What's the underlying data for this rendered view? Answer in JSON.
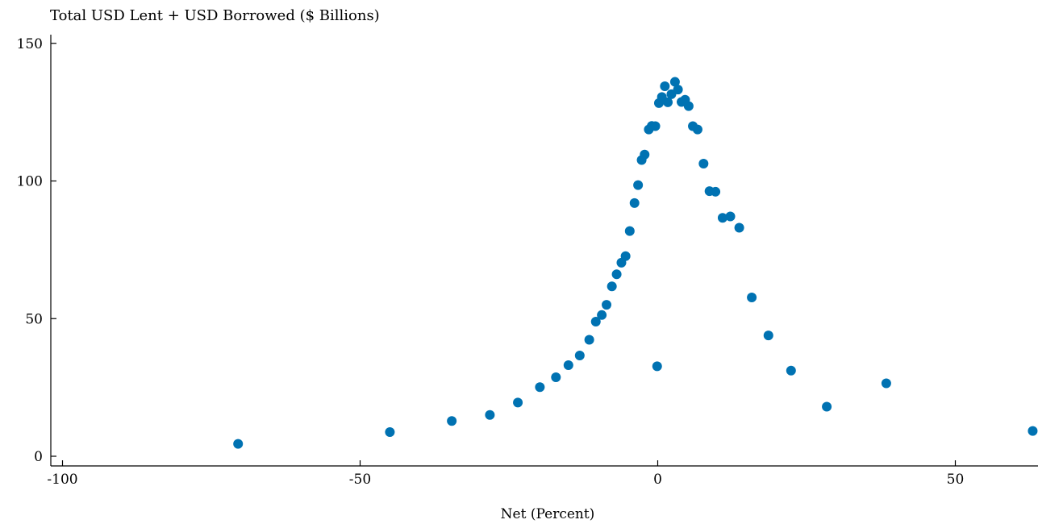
{
  "chart_data": {
    "type": "scatter",
    "title": "Total USD Lent + USD Borrowed ($ Billions)",
    "xlabel": "Net (Percent)",
    "ylabel": "",
    "xlim": [
      -102,
      64
    ],
    "ylim": [
      -4,
      154
    ],
    "xticks": [
      -100,
      -50,
      0,
      50
    ],
    "xtick_labels": [
      "-100",
      "-50",
      "0",
      "50"
    ],
    "yticks": [
      0,
      50,
      100,
      150
    ],
    "ytick_labels": [
      "0",
      "50",
      "100",
      "150"
    ],
    "grid": false,
    "legend": "none",
    "marker_color": "#0072b2",
    "points": [
      {
        "x": -70.5,
        "y": 4.5
      },
      {
        "x": -45.0,
        "y": 8.8
      },
      {
        "x": -34.6,
        "y": 12.8
      },
      {
        "x": -28.2,
        "y": 15.0
      },
      {
        "x": -23.5,
        "y": 19.5
      },
      {
        "x": -19.8,
        "y": 25.1
      },
      {
        "x": -17.1,
        "y": 28.7
      },
      {
        "x": -15.0,
        "y": 33.1
      },
      {
        "x": -13.1,
        "y": 36.6
      },
      {
        "x": -11.5,
        "y": 42.3
      },
      {
        "x": -10.4,
        "y": 48.9
      },
      {
        "x": -9.4,
        "y": 51.3
      },
      {
        "x": -8.6,
        "y": 55.0
      },
      {
        "x": -7.7,
        "y": 61.7
      },
      {
        "x": -6.9,
        "y": 66.1
      },
      {
        "x": -6.1,
        "y": 70.3
      },
      {
        "x": -5.4,
        "y": 72.7
      },
      {
        "x": -4.7,
        "y": 81.8
      },
      {
        "x": -3.9,
        "y": 92.0
      },
      {
        "x": -3.3,
        "y": 98.5
      },
      {
        "x": -2.7,
        "y": 107.6
      },
      {
        "x": -2.2,
        "y": 109.6
      },
      {
        "x": -1.5,
        "y": 118.7
      },
      {
        "x": -1.0,
        "y": 120.0
      },
      {
        "x": -0.4,
        "y": 119.9
      },
      {
        "x": -0.1,
        "y": 32.7
      },
      {
        "x": 0.2,
        "y": 128.3
      },
      {
        "x": 0.7,
        "y": 130.5
      },
      {
        "x": 1.2,
        "y": 134.4
      },
      {
        "x": 1.7,
        "y": 128.6
      },
      {
        "x": 2.3,
        "y": 131.5
      },
      {
        "x": 2.9,
        "y": 136.0
      },
      {
        "x": 3.4,
        "y": 133.2
      },
      {
        "x": 4.0,
        "y": 128.7
      },
      {
        "x": 4.6,
        "y": 129.5
      },
      {
        "x": 5.2,
        "y": 127.2
      },
      {
        "x": 5.9,
        "y": 119.9
      },
      {
        "x": 6.7,
        "y": 118.7
      },
      {
        "x": 7.7,
        "y": 106.3
      },
      {
        "x": 8.7,
        "y": 96.3
      },
      {
        "x": 9.7,
        "y": 96.1
      },
      {
        "x": 10.9,
        "y": 86.6
      },
      {
        "x": 12.2,
        "y": 87.1
      },
      {
        "x": 13.7,
        "y": 83.0
      },
      {
        "x": 15.8,
        "y": 57.7
      },
      {
        "x": 18.6,
        "y": 43.9
      },
      {
        "x": 22.4,
        "y": 31.1
      },
      {
        "x": 28.4,
        "y": 18.0
      },
      {
        "x": 38.4,
        "y": 26.5
      },
      {
        "x": 63.0,
        "y": 9.2
      }
    ]
  }
}
